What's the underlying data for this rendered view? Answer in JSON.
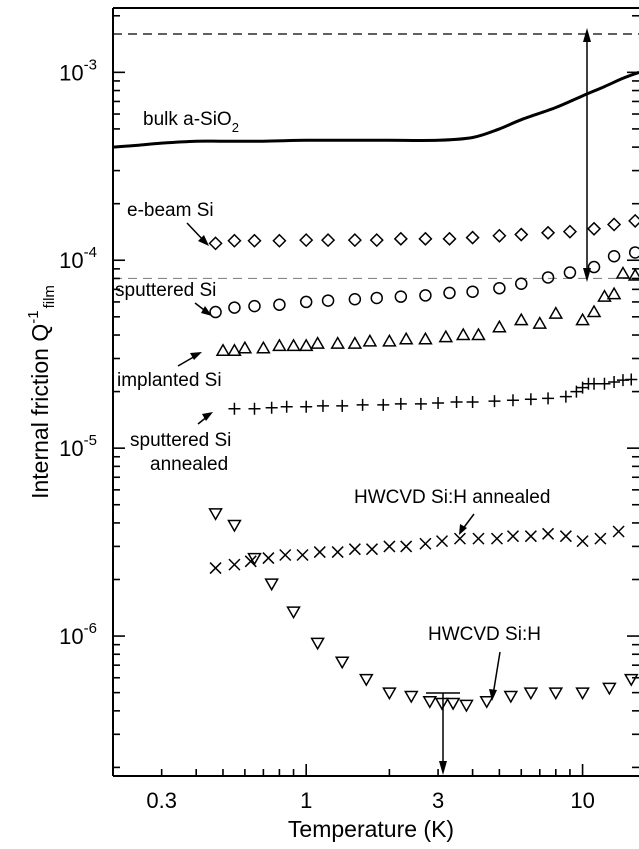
{
  "chart_data": {
    "type": "scatter",
    "xlabel": "Temperature (K)",
    "ylabel": "Internal friction Q",
    "ylabel_sup": "-1",
    "ylabel_sub": "film",
    "xscale": "log",
    "yscale": "log",
    "xlim": [
      0.2,
      16
    ],
    "ylim": [
      1.8e-07,
      0.0022
    ],
    "x_ticks": [
      0.3,
      1,
      3,
      10
    ],
    "x_tick_labels": [
      "0.3",
      "1",
      "3",
      "10"
    ],
    "y_ticks": [
      1e-06,
      1e-05,
      0.0001,
      0.001
    ],
    "y_tick_labels": [
      {
        "base": "10",
        "exp": "-6"
      },
      {
        "base": "10",
        "exp": "-5"
      },
      {
        "base": "10",
        "exp": "-4"
      },
      {
        "base": "10",
        "exp": "-3"
      }
    ],
    "reference_lines": [
      {
        "y": 0.0016,
        "style": "dashed"
      },
      {
        "y": 8e-05,
        "style": "dashed-grey"
      }
    ],
    "series": [
      {
        "name": "bulk a-SiO2",
        "marker": "line",
        "x": [
          0.2,
          0.25,
          0.3,
          0.4,
          0.5,
          0.7,
          1.0,
          1.5,
          2.0,
          3.0,
          4.0,
          5.0,
          6.0,
          8.0,
          10.0,
          12.0,
          14.0,
          16.0
        ],
        "y": [
          0.0004,
          0.00041,
          0.00042,
          0.00043,
          0.00043,
          0.00043,
          0.000435,
          0.000435,
          0.000435,
          0.000435,
          0.00045,
          0.0005,
          0.00056,
          0.00065,
          0.00075,
          0.00084,
          0.00093,
          0.001
        ]
      },
      {
        "name": "e-beam Si",
        "marker": "diamond",
        "x": [
          0.47,
          0.55,
          0.65,
          0.8,
          1.0,
          1.2,
          1.5,
          1.8,
          2.2,
          2.7,
          3.3,
          4.0,
          5.0,
          6.0,
          7.5,
          9.0,
          11.0,
          13.0,
          15.5
        ],
        "y": [
          0.000123,
          0.000127,
          0.000127,
          0.000127,
          0.000128,
          0.000128,
          0.000128,
          0.000128,
          0.00013,
          0.00013,
          0.00013,
          0.000132,
          0.000135,
          0.000137,
          0.00014,
          0.000142,
          0.000147,
          0.000155,
          0.000162
        ]
      },
      {
        "name": "sputtered Si",
        "marker": "circle",
        "x": [
          0.47,
          0.55,
          0.65,
          0.8,
          1.0,
          1.2,
          1.5,
          1.8,
          2.2,
          2.7,
          3.3,
          4.0,
          5.0,
          6.0,
          7.5,
          9.0,
          11.0,
          13.0,
          15.5
        ],
        "y": [
          5.3e-05,
          5.6e-05,
          5.7e-05,
          5.8e-05,
          6e-05,
          6.1e-05,
          6.2e-05,
          6.3e-05,
          6.4e-05,
          6.5e-05,
          6.7e-05,
          6.8e-05,
          7.1e-05,
          7.5e-05,
          8.1e-05,
          8.6e-05,
          9.2e-05,
          0.000105,
          0.00011
        ]
      },
      {
        "name": "implanted Si",
        "marker": "triangle-up",
        "x": [
          0.5,
          0.55,
          0.6,
          0.7,
          0.8,
          0.9,
          1.0,
          1.1,
          1.3,
          1.5,
          1.7,
          2.0,
          2.3,
          2.7,
          3.2,
          3.7,
          4.2,
          5.0,
          6.0,
          7.0,
          8.0,
          10.0,
          11.0,
          12.0,
          13.0,
          14.0,
          15.5
        ],
        "y": [
          3.3e-05,
          3.3e-05,
          3.4e-05,
          3.4e-05,
          3.5e-05,
          3.5e-05,
          3.5e-05,
          3.6e-05,
          3.6e-05,
          3.6e-05,
          3.7e-05,
          3.7e-05,
          3.8e-05,
          3.8e-05,
          3.9e-05,
          4e-05,
          4e-05,
          4.4e-05,
          4.8e-05,
          4.6e-05,
          5.2e-05,
          4.8e-05,
          5.3e-05,
          6.4e-05,
          6.6e-05,
          8.5e-05,
          8.3e-05
        ]
      },
      {
        "name": "sputtered Si annealed",
        "marker": "plus",
        "x": [
          0.55,
          0.65,
          0.75,
          0.85,
          1.0,
          1.15,
          1.35,
          1.6,
          1.9,
          2.2,
          2.6,
          3.0,
          3.5,
          4.0,
          4.8,
          5.6,
          6.5,
          7.5,
          8.7,
          9.5,
          10.0,
          10.5,
          11.0,
          12.0,
          13.0,
          14.0,
          15.0
        ],
        "y": [
          1.62e-05,
          1.62e-05,
          1.64e-05,
          1.66e-05,
          1.66e-05,
          1.68e-05,
          1.68e-05,
          1.7e-05,
          1.7e-05,
          1.72e-05,
          1.72e-05,
          1.74e-05,
          1.76e-05,
          1.76e-05,
          1.78e-05,
          1.8e-05,
          1.82e-05,
          1.84e-05,
          1.88e-05,
          2e-05,
          2.1e-05,
          2.2e-05,
          2.2e-05,
          2.2e-05,
          2.25e-05,
          2.3e-05,
          2.32e-05
        ]
      },
      {
        "name": "HWCVD Si:H annealed",
        "marker": "cross",
        "x": [
          0.47,
          0.55,
          0.63,
          0.73,
          0.84,
          0.97,
          1.12,
          1.3,
          1.5,
          1.73,
          2.0,
          2.3,
          2.7,
          3.1,
          3.6,
          4.2,
          4.9,
          5.6,
          6.5,
          7.5,
          8.7,
          10.0,
          11.6,
          13.5
        ],
        "y": [
          2.3e-06,
          2.4e-06,
          2.5e-06,
          2.6e-06,
          2.7e-06,
          2.7e-06,
          2.8e-06,
          2.8e-06,
          2.9e-06,
          2.9e-06,
          3e-06,
          3e-06,
          3.1e-06,
          3.2e-06,
          3.3e-06,
          3.3e-06,
          3.3e-06,
          3.4e-06,
          3.4e-06,
          3.5e-06,
          3.4e-06,
          3.2e-06,
          3.3e-06,
          3.6e-06
        ]
      },
      {
        "name": "HWCVD Si:H",
        "marker": "triangle-down",
        "x": [
          0.47,
          0.55,
          0.65,
          0.75,
          0.9,
          1.1,
          1.35,
          1.65,
          2.0,
          2.4,
          2.8,
          3.1,
          3.4,
          3.8,
          4.5,
          5.5,
          6.5,
          8.0,
          10.0,
          12.5,
          15.0
        ],
        "y": [
          4.5e-06,
          3.9e-06,
          2.6e-06,
          1.9e-06,
          1.35e-06,
          9.2e-07,
          7.3e-07,
          5.9e-07,
          5e-07,
          4.8e-07,
          4.5e-07,
          4.4e-07,
          4.4e-07,
          4.3e-07,
          4.5e-07,
          4.8e-07,
          5e-07,
          5e-07,
          5e-07,
          5.3e-07,
          5.9e-07
        ]
      }
    ],
    "annotations": [
      {
        "text": "bulk a-SiO",
        "sub": "2"
      },
      {
        "text": "e-beam Si"
      },
      {
        "text": "sputtered Si"
      },
      {
        "text": "implanted Si"
      },
      {
        "text": "sputtered Si"
      },
      {
        "text": "annealed"
      },
      {
        "text": "HWCVD Si:H annealed"
      },
      {
        "text": "HWCVD Si:H"
      }
    ]
  }
}
